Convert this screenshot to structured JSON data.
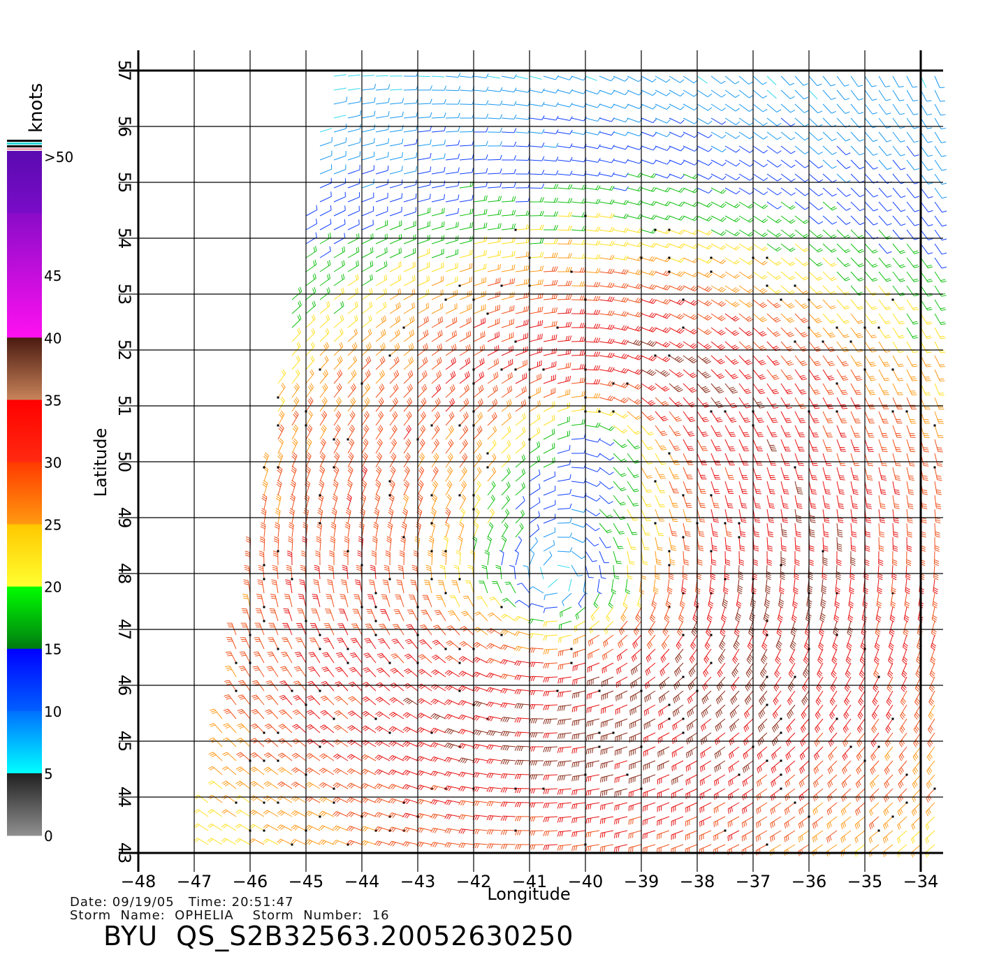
{
  "colorbar": {
    "unit_label": "knots",
    "labels": [
      ">50",
      "45",
      "40",
      "35",
      "30",
      "25",
      "20",
      "15",
      "10",
      "5",
      "0"
    ],
    "stops": [
      {
        "from": 50,
        "to": 55,
        "top": "#5a0ab0",
        "bottom": "#7a0cc8"
      },
      {
        "from": 40,
        "to": 50,
        "top": "#8a0cc8",
        "bottom": "#ff10f0"
      },
      {
        "from": 35,
        "to": 40,
        "top": "#4a1a10",
        "bottom": "#c8845a"
      },
      {
        "from": 30,
        "to": 35,
        "top": "#ff0000",
        "bottom": "#ff2a10"
      },
      {
        "from": 25,
        "to": 30,
        "top": "#ff3a00",
        "bottom": "#ff9a10"
      },
      {
        "from": 20,
        "to": 25,
        "top": "#ffc800",
        "bottom": "#ffff30"
      },
      {
        "from": 15,
        "to": 20,
        "top": "#00ff00",
        "bottom": "#007a10"
      },
      {
        "from": 10,
        "to": 15,
        "top": "#0000ff",
        "bottom": "#0060ff"
      },
      {
        "from": 5,
        "to": 10,
        "top": "#0070ff",
        "bottom": "#00ffff"
      },
      {
        "from": 0,
        "to": 5,
        "top": "#202020",
        "bottom": "#909090"
      }
    ]
  },
  "map": {
    "x_axis_label": "Longitude",
    "y_axis_label": "Latitude",
    "lon_range": [
      -48,
      -34
    ],
    "lat_range": [
      43,
      57
    ],
    "lon_ticks": [
      -48,
      -47,
      -46,
      -45,
      -44,
      -43,
      -42,
      -41,
      -40,
      -39,
      -38,
      -37,
      -36,
      -35,
      -34
    ],
    "lon_tick_labels": [
      "−48",
      "−47",
      "−46",
      "−45",
      "−44",
      "−43",
      "−42",
      "−41",
      "−40",
      "−39",
      "−38",
      "−37",
      "−36",
      "−35",
      "−34"
    ],
    "lat_ticks": [
      43,
      44,
      45,
      46,
      47,
      48,
      49,
      50,
      51,
      52,
      53,
      54,
      55,
      56,
      57
    ],
    "lat_tick_labels": [
      "43",
      "44",
      "45",
      "46",
      "47",
      "48",
      "49",
      "50",
      "51",
      "52",
      "53",
      "54",
      "55",
      "56",
      "57"
    ],
    "grid": true,
    "wind_field": {
      "low_centers": [
        {
          "lon": -39.8,
          "lat": 51.1,
          "label": "low-north"
        },
        {
          "lon": -40.5,
          "lat": 47.5,
          "label": "low-main"
        }
      ],
      "swath_west_edge_lon_at_lat": [
        [
          -44.6,
          57
        ],
        [
          -46.9,
          43
        ]
      ],
      "swath_east_edge_lon": -33.7
    }
  },
  "footer": {
    "date_line": "Date: 09/19/05   Time: 20:51:47",
    "storm_line": "Storm  Name:  OPHELIA    Storm  Number:  16",
    "product_title": "BYU  QS_S2B32563.20052630250"
  }
}
